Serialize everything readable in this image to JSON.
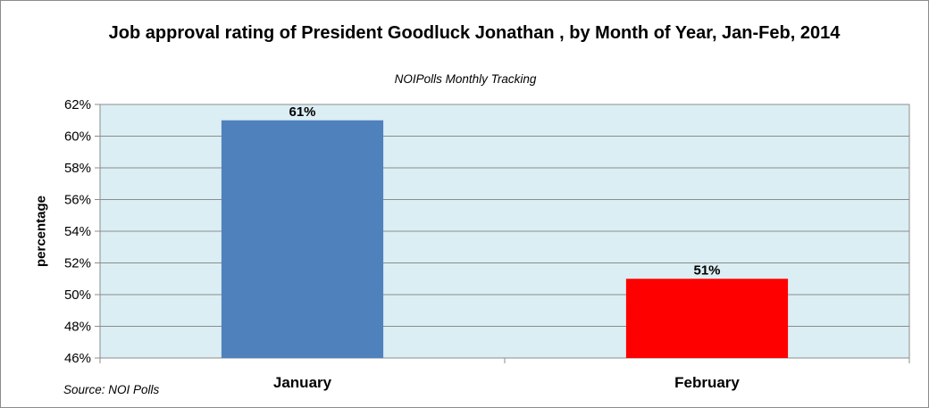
{
  "chart_data": {
    "type": "bar",
    "title": "Job approval rating of President Goodluck Jonathan , by Month of Year, Jan-Feb, 2014",
    "subtitle": "NOIPolls Monthly Tracking",
    "source": "Source: NOI Polls",
    "xlabel": "",
    "ylabel": "percentage",
    "categories": [
      "January",
      "February"
    ],
    "values": [
      61,
      51
    ],
    "data_labels": [
      "61%",
      "51%"
    ],
    "bar_colors": [
      "#4f81bd",
      "#ff0000"
    ],
    "ylim": [
      46,
      62
    ],
    "yticks": [
      46,
      48,
      50,
      52,
      54,
      56,
      58,
      60,
      62
    ],
    "ytick_labels": [
      "46%",
      "48%",
      "50%",
      "52%",
      "54%",
      "56%",
      "58%",
      "60%",
      "62%"
    ],
    "plot_background": "#dbeef3",
    "grid": true,
    "legend": "none"
  }
}
